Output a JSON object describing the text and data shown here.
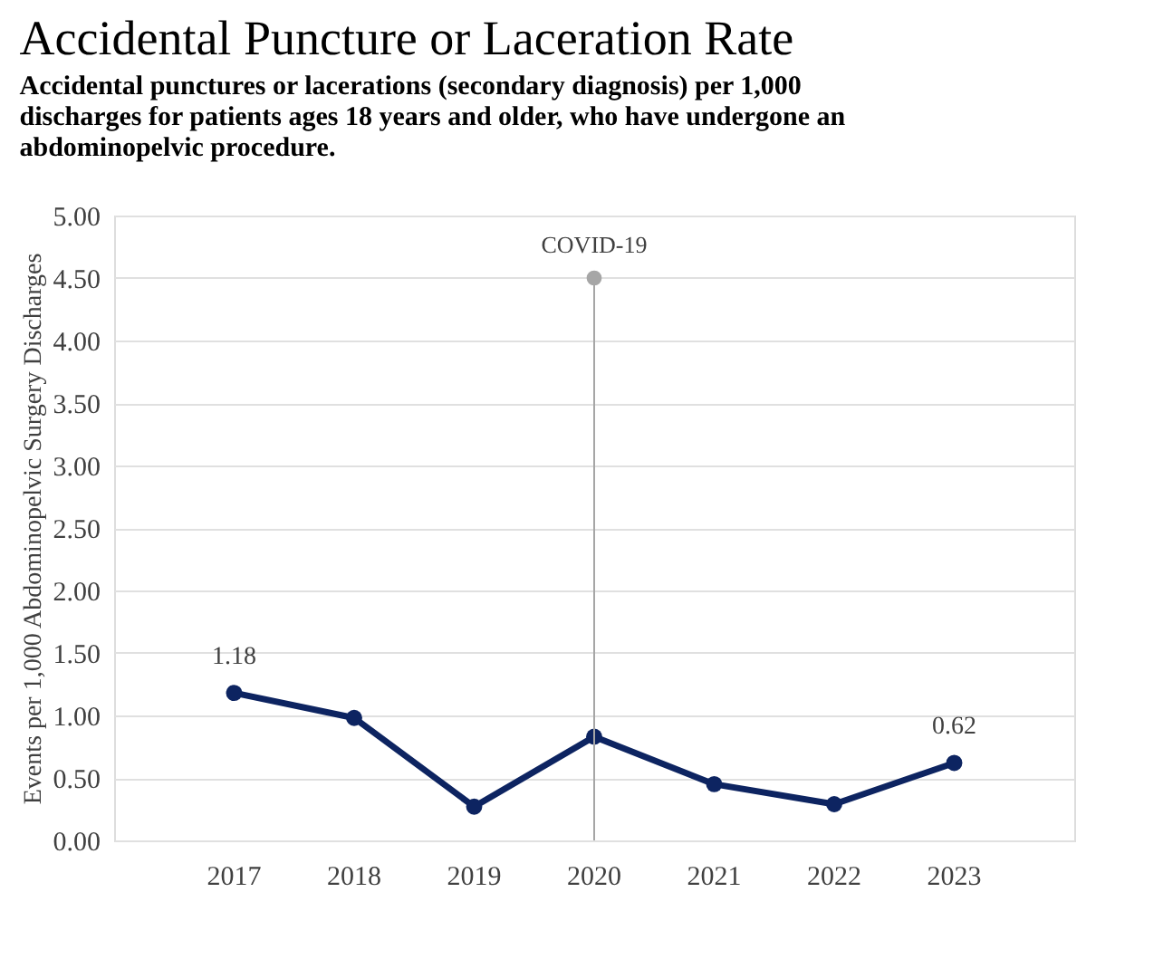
{
  "chart_data": {
    "type": "line",
    "title": "Accidental Puncture or Laceration Rate",
    "subtitle": "Accidental punctures or lacerations (secondary diagnosis) per 1,000 discharges for patients ages 18 years and older, who have undergone an abdominopelvic procedure.",
    "ylabel": "Events per 1,000 Abdominopelvic Surgery Discharges",
    "categories": [
      "2017",
      "2018",
      "2019",
      "2020",
      "2021",
      "2022",
      "2023"
    ],
    "series": [
      {
        "color": "#0d2461",
        "values": [
          1.18,
          0.98,
          0.27,
          0.83,
          0.45,
          0.29,
          0.62
        ],
        "value_labels": [
          "1.18",
          null,
          null,
          null,
          null,
          null,
          "0.62"
        ]
      }
    ],
    "annotations": [
      {
        "text": "COVID-19",
        "x": "2020",
        "y": 4.5
      }
    ],
    "ylim": [
      0,
      5
    ],
    "yticks": [
      {
        "value": 0,
        "label": "0.00"
      },
      {
        "value": 0.5,
        "label": "0.50"
      },
      {
        "value": 1,
        "label": "1.00"
      },
      {
        "value": 1.5,
        "label": "1.50"
      },
      {
        "value": 2,
        "label": "2.00"
      },
      {
        "value": 2.5,
        "label": "2.50"
      },
      {
        "value": 3,
        "label": "3.00"
      },
      {
        "value": 3.5,
        "label": "3.50"
      },
      {
        "value": 4,
        "label": "4.00"
      },
      {
        "value": 4.5,
        "label": "4.50"
      },
      {
        "value": 5,
        "label": "5.00"
      }
    ],
    "ref_lines": [
      {
        "axis": "x",
        "value": "2020",
        "color": "#a6a6a6"
      }
    ],
    "grid": "y",
    "marker": "circle",
    "line_style": "solid"
  }
}
